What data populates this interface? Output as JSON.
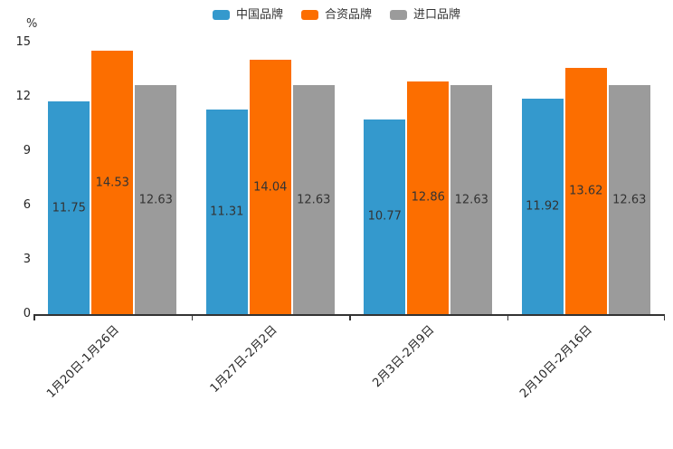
{
  "page": {
    "background": "#ffffff"
  },
  "chart_data": {
    "type": "bar",
    "title": "",
    "y_axis_unit": "%",
    "categories": [
      "1月20日-1月26日",
      "1月27日-2月2日",
      "2月3日-2月9日",
      "2月10日-2月16日"
    ],
    "series": [
      {
        "name": "中国品牌",
        "color": "#3499CD",
        "values": [
          11.75,
          11.31,
          10.77,
          11.92
        ]
      },
      {
        "name": "合资品牌",
        "color": "#FC6E00",
        "values": [
          14.53,
          14.04,
          12.86,
          13.62
        ]
      },
      {
        "name": "进口品牌",
        "color": "#9B9B9B",
        "values": [
          12.63,
          12.63,
          12.63,
          12.63
        ]
      }
    ],
    "y_ticks": [
      0,
      3,
      6,
      9,
      12,
      15
    ],
    "ylim": [
      0,
      15
    ],
    "grid": false,
    "legend_position": "top-center",
    "bar_labels_shown": true,
    "x_label_rotation_deg": 45,
    "axis_color": "#333333",
    "label_color": "#333333"
  }
}
